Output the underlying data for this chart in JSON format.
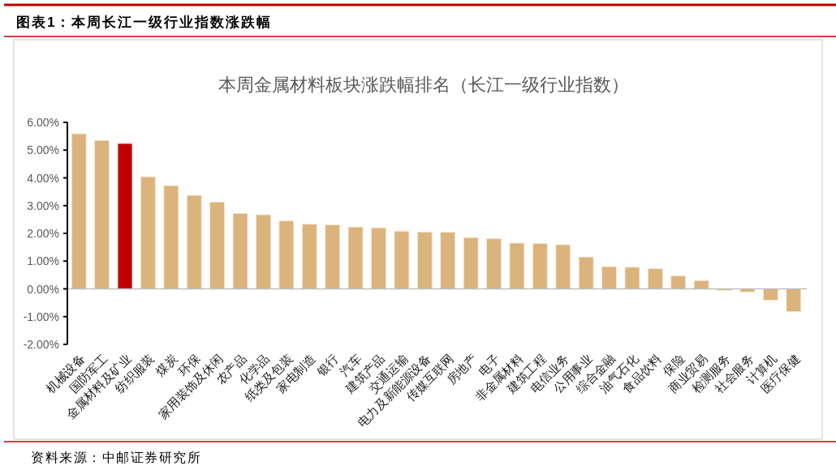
{
  "chart_data": {
    "type": "bar",
    "title": "本周金属材料板块涨跌幅排名（长江一级行业指数）",
    "categories": [
      "机械设备",
      "国防军工",
      "金属材料及矿业",
      "纺织服装",
      "煤炭",
      "环保",
      "家用装饰及休闲",
      "农产品",
      "化学品",
      "纸类及包装",
      "家电制造",
      "银行",
      "汽车",
      "建筑产品",
      "交通运输",
      "电力及新能源设备",
      "传媒互联网",
      "房地产",
      "电子",
      "非金属材料",
      "建筑工程",
      "电信业务",
      "公用事业",
      "综合金融",
      "油气石化",
      "食品饮料",
      "保险",
      "商业贸易",
      "检测服务",
      "社会服务",
      "计算机",
      "医疗保健"
    ],
    "values": [
      5.59,
      5.35,
      5.24,
      4.04,
      3.72,
      3.37,
      3.13,
      2.72,
      2.67,
      2.45,
      2.33,
      2.31,
      2.23,
      2.2,
      2.08,
      2.05,
      2.04,
      1.85,
      1.81,
      1.65,
      1.64,
      1.59,
      1.15,
      0.8,
      0.78,
      0.73,
      0.47,
      0.3,
      -0.05,
      -0.11,
      -0.41,
      -0.82
    ],
    "colors": [
      "#dbb37d",
      "#dbb37d",
      "#c00000",
      "#dbb37d",
      "#dbb37d",
      "#dbb37d",
      "#dbb37d",
      "#dbb37d",
      "#dbb37d",
      "#dbb37d",
      "#dbb37d",
      "#dbb37d",
      "#dbb37d",
      "#dbb37d",
      "#dbb37d",
      "#dbb37d",
      "#dbb37d",
      "#dbb37d",
      "#dbb37d",
      "#dbb37d",
      "#dbb37d",
      "#dbb37d",
      "#dbb37d",
      "#dbb37d",
      "#dbb37d",
      "#dbb37d",
      "#dbb37d",
      "#dbb37d",
      "#dbb37d",
      "#dbb37d",
      "#dbb37d",
      "#dbb37d"
    ],
    "ylim": [
      -2,
      6
    ],
    "yticks": [
      {
        "value": -2,
        "label": "-2.00%"
      },
      {
        "value": -1,
        "label": "-1.00%"
      },
      {
        "value": 0,
        "label": "0.00%"
      },
      {
        "value": 1,
        "label": "1.00%"
      },
      {
        "value": 2,
        "label": "2.00%"
      },
      {
        "value": 3,
        "label": "3.00%"
      },
      {
        "value": 4,
        "label": "4.00%"
      },
      {
        "value": 5,
        "label": "5.00%"
      },
      {
        "value": 6,
        "label": "6.00%"
      }
    ],
    "annotations": [
      "图表1：本周长江一级行业指数涨跌幅",
      "资料来源：中邮证券研究所"
    ]
  }
}
